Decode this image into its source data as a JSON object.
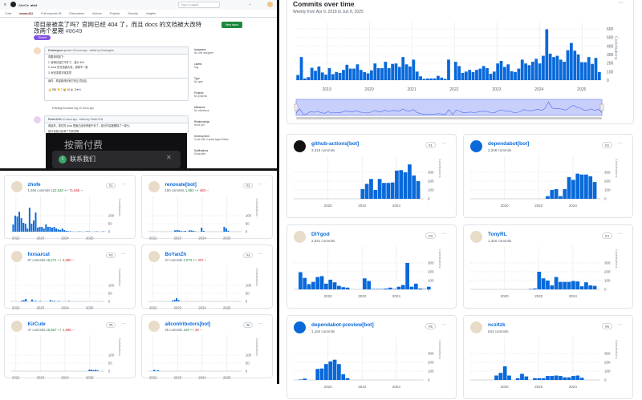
{
  "issue_page": {
    "repo_owner": "AlistGo",
    "repo_name": "alist",
    "tabs": [
      "Code",
      "Issues 531",
      "Pull requests 38",
      "Discussions",
      "Actions",
      "Projects",
      "Security",
      "Insights"
    ],
    "search_placeholder": "Type / to search",
    "title": "项目是被卖了吗？官网已经 404 了，而且 docs 的文档被大改特改两个星期",
    "number": "#8649",
    "status": "Closed",
    "new_issue": "New issue",
    "comment1": {
      "author": "Exlwangmd",
      "meta": "opened 10 hours ago · edited by Exlwangmd",
      "lines": [
        "简要说明如下：",
        "1. 官网已经打不开了，显示 404",
        "2. docs 的文档被大改，说明不一致",
        "3. 有些变更非常突然",
        "最终，希望能得到官方的正式回应。"
      ],
      "reactions": "👍 250  👎 7  😄 16  🎉 8  ❤ 6"
    },
    "event": "Exlwangmd added  bug  10 hours ago",
    "comment2": {
      "author": "Pavlin1234",
      "meta": "10 hours ago · edited by Pavlin1234",
      "lines": [
        "看起来，现在的 docs 里面已经改得差不多了，部分内容被删除了一部分。",
        "部分页面已经有了付费说明"
      ]
    },
    "overlay": {
      "title": "按需付费",
      "contact": "联系我们"
    },
    "sidebar": [
      {
        "k": "Assignees",
        "v": "No one assigned"
      },
      {
        "k": "Labels",
        "v": "bug"
      },
      {
        "k": "Type",
        "v": "No type"
      },
      {
        "k": "Projects",
        "v": "No projects"
      },
      {
        "k": "Milestone",
        "v": "No milestone"
      },
      {
        "k": "Relationships",
        "v": "None yet"
      },
      {
        "k": "Development",
        "v": "Code with Copilot Agent Mode"
      },
      {
        "k": "Notifications",
        "v": "Subscribe"
      }
    ]
  },
  "commits_over_time": {
    "title": "Commits over time",
    "subtitle": "Weekly from Apr 9, 2018 to Jun 8, 2025",
    "more": "···",
    "chart_data": {
      "type": "bar",
      "ylabel": "Contributions",
      "ylim": [
        0,
        600
      ],
      "yticks": [
        "0",
        "100",
        "200",
        "300",
        "400",
        "500",
        "600"
      ],
      "xticks": [
        "2019",
        "2020",
        "2021",
        "2022",
        "2023",
        "2024",
        "2025"
      ],
      "xrange": [
        2018.27,
        2025.45
      ],
      "values": [
        60,
        270,
        20,
        35,
        145,
        110,
        160,
        90,
        65,
        140,
        70,
        95,
        85,
        120,
        180,
        135,
        135,
        185,
        120,
        95,
        80,
        115,
        195,
        140,
        140,
        215,
        140,
        190,
        195,
        155,
        270,
        185,
        160,
        240,
        100,
        45,
        15,
        20,
        20,
        20,
        50,
        30,
        15,
        240,
        0,
        215,
        165,
        85,
        100,
        120,
        95,
        120,
        135,
        165,
        140,
        75,
        100,
        195,
        225,
        155,
        185,
        105,
        95,
        135,
        240,
        195,
        175,
        215,
        250,
        195,
        285,
        595,
        310,
        270,
        285,
        240,
        215,
        350,
        435,
        345,
        300,
        210,
        210,
        270,
        190,
        260,
        95
      ]
    },
    "accent": "#0969da"
  },
  "right_contributors": [
    {
      "name": "github-actions[bot]",
      "commits": "3,318 commits",
      "rank": "#1",
      "avatar": "github-icon",
      "xticks": [
        "2020",
        "2022",
        "2024"
      ],
      "yticks": [
        "0",
        "100",
        "200",
        "300"
      ],
      "ylabel": "Contributions",
      "xrange": [
        2018,
        2025.6
      ],
      "ymax": 400,
      "start": 2021.9,
      "values": [
        110,
        170,
        225,
        100,
        225,
        180,
        180,
        185,
        320,
        325,
        300,
        390,
        265,
        200
      ]
    },
    {
      "name": "dependabot[bot]",
      "commits": "2,208 commits",
      "rank": "#2",
      "avatar": "robot-icon",
      "xticks": [
        "2020",
        "2022",
        "2024"
      ],
      "yticks": [
        "0",
        "100",
        "200",
        "300"
      ],
      "ylabel": "Contributions",
      "xrange": [
        2018,
        2025.6
      ],
      "ymax": 400,
      "start": 2022.4,
      "values": [
        30,
        100,
        110,
        30,
        110,
        245,
        215,
        285,
        275,
        275,
        255,
        190
      ]
    },
    {
      "name": "DIYgod",
      "commits": "2,021 commits",
      "rank": "#3",
      "avatar": "user-avatar",
      "xticks": [
        "2020",
        "2022",
        "2024"
      ],
      "yticks": [
        "0",
        "100",
        "200",
        "300"
      ],
      "ylabel": "Contributions",
      "xrange": [
        2018,
        2025.6
      ],
      "ymax": 400,
      "start": 2018.27,
      "values": [
        195,
        130,
        60,
        85,
        140,
        150,
        65,
        110,
        80,
        40,
        25,
        20,
        0,
        0,
        0,
        125,
        95,
        5,
        5,
        5,
        10,
        20,
        5,
        30,
        50,
        300,
        30,
        65,
        10,
        5,
        30
      ]
    },
    {
      "name": "TonyRL",
      "commits": "1,320 commits",
      "rank": "#4",
      "avatar": "user-avatar",
      "xticks": [
        "2020",
        "2022",
        "2024"
      ],
      "yticks": [
        "0",
        "100",
        "200",
        "300"
      ],
      "ylabel": "Contributions",
      "xrange": [
        2018,
        2025.6
      ],
      "ymax": 400,
      "start": 2021.4,
      "values": [
        5,
        10,
        200,
        125,
        100,
        45,
        140,
        85,
        85,
        85,
        95,
        90,
        35,
        80,
        45,
        40
      ]
    },
    {
      "name": "dependabot-preview[bot]",
      "commits": "1,184 commits",
      "rank": "#5",
      "avatar": "robot-icon",
      "xticks": [
        "2020",
        "2022",
        "2024"
      ],
      "yticks": [
        "0",
        "100",
        "200",
        "300"
      ],
      "ylabel": "Contributions",
      "xrange": [
        2018,
        2025.6
      ],
      "ymax": 400,
      "start": 2018.27,
      "values": [
        5,
        15,
        0,
        0,
        125,
        130,
        180,
        210,
        230,
        180,
        65,
        20
      ]
    },
    {
      "name": "nczitzk",
      "commits": "843 commits",
      "rank": "#6",
      "avatar": "user-avatar",
      "xticks": [
        "2020",
        "2022",
        "2024"
      ],
      "yticks": [
        "0",
        "100",
        "200",
        "300"
      ],
      "ylabel": "Contributions",
      "xrange": [
        2018,
        2025.6
      ],
      "ymax": 400,
      "start": 2019.4,
      "values": [
        50,
        80,
        155,
        50,
        0,
        20,
        70,
        40,
        0,
        20,
        20,
        20,
        45,
        45,
        50,
        45,
        30,
        30,
        45,
        50,
        25
      ]
    }
  ],
  "left_contributors": [
    {
      "name": "zhofe",
      "commits": "1,466 commits",
      "additions": "122,510 ++",
      "deletions": "71,665 --",
      "rank": "#1",
      "xticks": [
        "2022",
        "2023",
        "2024",
        "2025"
      ],
      "yticks": [
        "0",
        "50",
        "100"
      ],
      "ylabel": "Contributions",
      "xrange": [
        2021.8,
        2025.6
      ],
      "ymax": 180,
      "start": 2021.85,
      "values": [
        45,
        100,
        95,
        125,
        85,
        55,
        50,
        20,
        150,
        50,
        70,
        120,
        25,
        30,
        30,
        20,
        45,
        30,
        30,
        25,
        30,
        20,
        15,
        10,
        20,
        10,
        5,
        3,
        2,
        1,
        0,
        0,
        2,
        1,
        0,
        0,
        3,
        2,
        0,
        0,
        1,
        2,
        0,
        0,
        2,
        1
      ]
    },
    {
      "name": "renovate[bot]",
      "commits": "180 commits",
      "additions": "1,983 ++",
      "deletions": "483 --",
      "rank": "#2",
      "xticks": [
        "2022",
        "2023",
        "2024",
        "2025"
      ],
      "yticks": [
        "0",
        "50",
        "100"
      ],
      "ylabel": "Contributions",
      "xrange": [
        2021.8,
        2025.6
      ],
      "ymax": 180,
      "start": 2022.85,
      "values": [
        8,
        10,
        8,
        4,
        2,
        5,
        0,
        8,
        8,
        5,
        2,
        0,
        0,
        25,
        5,
        0,
        0,
        0,
        0,
        0,
        0,
        0,
        0,
        0,
        30,
        20,
        6
      ]
    },
    {
      "name": "foxsarcat",
      "commits": "87 commits",
      "additions": "16,271 ++",
      "deletions": "4,680 --",
      "rank": "#3",
      "xticks": [
        "2022",
        "2023",
        "2024",
        "2025"
      ],
      "yticks": [
        "0",
        "50",
        "100"
      ],
      "ylabel": "Contributions",
      "xrange": [
        2021.8,
        2025.6
      ],
      "ymax": 180,
      "start": 2022.2,
      "values": [
        5,
        8,
        15,
        0,
        0,
        12,
        3,
        3,
        0,
        3,
        0,
        0,
        0,
        0,
        8,
        3,
        3,
        0,
        3,
        0,
        0,
        0,
        0,
        3
      ]
    },
    {
      "name": "BoYanZh",
      "commits": "47 commits",
      "additions": "2,073 ++",
      "deletions": "337 --",
      "rank": "#4",
      "xticks": [
        "2022",
        "2023",
        "2024",
        "2025"
      ],
      "yticks": [
        "0",
        "50",
        "100"
      ],
      "ylabel": "Contributions",
      "xrange": [
        2021.8,
        2025.6
      ],
      "ymax": 180,
      "start": 2022.75,
      "values": [
        5,
        10,
        20,
        8
      ]
    },
    {
      "name": "KirCute",
      "commits": "37 commits",
      "additions": "15,827 ++",
      "deletions": "1,895 --",
      "rank": "#5",
      "xticks": [
        "2022",
        "2023",
        "2024",
        "2025"
      ],
      "yticks": [
        "0",
        "50",
        "100"
      ],
      "ylabel": "Contributions",
      "xrange": [
        2021.8,
        2025.6
      ],
      "ymax": 180,
      "start": 2024.95,
      "values": [
        10,
        8,
        6,
        8,
        5
      ]
    },
    {
      "name": "allcontributors[bot]",
      "commits": "25 commits",
      "additions": "159 ++",
      "deletions": "25 --",
      "rank": "#6",
      "xticks": [
        "2022",
        "2023",
        "2024",
        "2025"
      ],
      "yticks": [
        "0",
        "50",
        "100"
      ],
      "ylabel": "Contributions",
      "xrange": [
        2021.8,
        2025.6
      ],
      "ymax": 180,
      "start": 2022.0,
      "values": [
        8,
        3,
        5
      ]
    }
  ]
}
